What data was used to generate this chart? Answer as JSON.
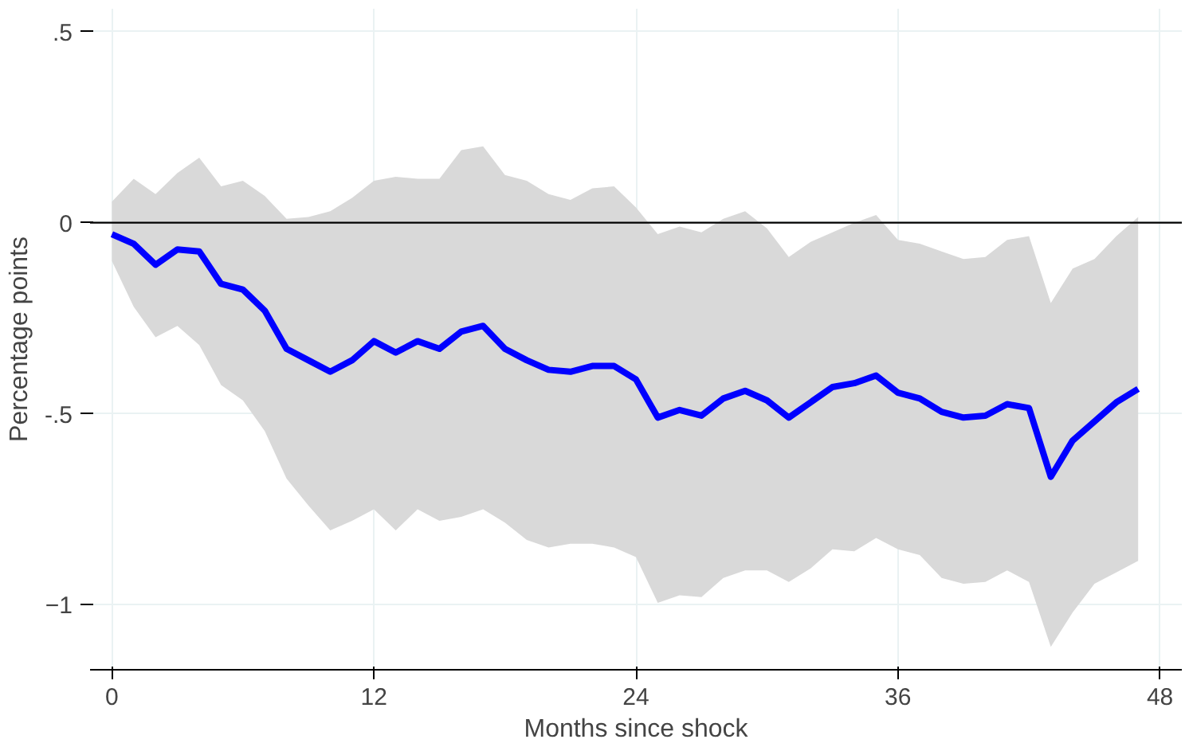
{
  "chart_data": {
    "type": "line",
    "xlabel": "Months since shock",
    "ylabel": "Percentage points",
    "x": [
      0,
      1,
      2,
      3,
      4,
      5,
      6,
      7,
      8,
      9,
      10,
      11,
      12,
      13,
      14,
      15,
      16,
      17,
      18,
      19,
      20,
      21,
      22,
      23,
      24,
      25,
      26,
      27,
      28,
      29,
      30,
      31,
      32,
      33,
      34,
      35,
      36,
      37,
      38,
      39,
      40,
      41,
      42,
      43,
      44,
      45,
      46,
      47
    ],
    "series": [
      {
        "color": "#0000ff",
        "values": [
          -0.03,
          -0.055,
          -0.11,
          -0.07,
          -0.075,
          -0.16,
          -0.175,
          -0.23,
          -0.33,
          -0.36,
          -0.39,
          -0.36,
          -0.31,
          -0.34,
          -0.31,
          -0.33,
          -0.285,
          -0.27,
          -0.33,
          -0.36,
          -0.385,
          -0.39,
          -0.375,
          -0.375,
          -0.41,
          -0.51,
          -0.49,
          -0.505,
          -0.46,
          -0.44,
          -0.465,
          -0.51,
          -0.47,
          -0.43,
          -0.42,
          -0.4,
          -0.445,
          -0.46,
          -0.495,
          -0.51,
          -0.505,
          -0.475,
          -0.485,
          -0.665,
          -0.57,
          -0.52,
          -0.47,
          -0.435
        ],
        "upper": [
          0.055,
          0.115,
          0.075,
          0.13,
          0.17,
          0.095,
          0.11,
          0.07,
          0.01,
          0.015,
          0.03,
          0.065,
          0.11,
          0.12,
          0.115,
          0.115,
          0.19,
          0.2,
          0.125,
          0.11,
          0.075,
          0.06,
          0.09,
          0.095,
          0.04,
          -0.03,
          -0.01,
          -0.025,
          0.01,
          0.03,
          -0.015,
          -0.09,
          -0.05,
          -0.025,
          0.0,
          0.02,
          -0.045,
          -0.055,
          -0.075,
          -0.095,
          -0.09,
          -0.045,
          -0.035,
          -0.21,
          -0.12,
          -0.095,
          -0.035,
          0.015
        ],
        "lower": [
          -0.1,
          -0.22,
          -0.3,
          -0.27,
          -0.32,
          -0.425,
          -0.465,
          -0.545,
          -0.67,
          -0.74,
          -0.805,
          -0.78,
          -0.75,
          -0.805,
          -0.75,
          -0.78,
          -0.77,
          -0.75,
          -0.785,
          -0.83,
          -0.85,
          -0.84,
          -0.84,
          -0.85,
          -0.875,
          -0.995,
          -0.975,
          -0.98,
          -0.93,
          -0.91,
          -0.91,
          -0.94,
          -0.905,
          -0.855,
          -0.86,
          -0.825,
          -0.855,
          -0.87,
          -0.93,
          -0.945,
          -0.94,
          -0.91,
          -0.94,
          -1.11,
          -1.02,
          -0.945,
          -0.915,
          -0.885
        ]
      }
    ],
    "xlim": [
      -1,
      49
    ],
    "ylim": [
      -1.17,
      0.56
    ],
    "xticks": [
      0,
      12,
      24,
      36,
      48
    ],
    "yticks": [
      {
        "value": 0.5,
        "label": ".5"
      },
      0,
      {
        "value": -0.5,
        "label": "-.5"
      },
      -1
    ],
    "ref_lines": [
      {
        "axis": "y",
        "value": 0,
        "color": "#000000"
      }
    ],
    "grid": true,
    "marker": "none",
    "line_style": "solid"
  }
}
